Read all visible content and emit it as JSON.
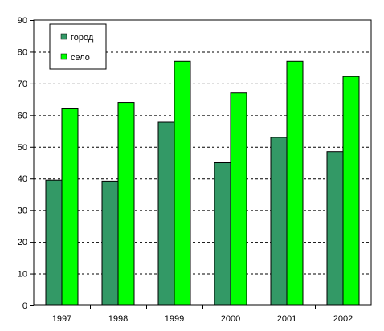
{
  "chart_data": {
    "type": "bar",
    "categories": [
      "1997",
      "1998",
      "1999",
      "2000",
      "2001",
      "2002"
    ],
    "series": [
      {
        "name": "город",
        "values": [
          39.5,
          39.2,
          57.8,
          45.0,
          53.0,
          48.5
        ],
        "color": "#339966"
      },
      {
        "name": "село",
        "values": [
          62.0,
          64.0,
          77.0,
          67.0,
          77.0,
          72.2
        ],
        "color": "#00ff00"
      }
    ],
    "title": "",
    "xlabel": "",
    "ylabel": "",
    "ylim": [
      0,
      90
    ],
    "yticks": [
      0,
      10,
      20,
      30,
      40,
      50,
      60,
      70,
      80,
      90
    ],
    "grid": true,
    "legend_position": "top-left"
  },
  "colors": {
    "background": "#ffffff",
    "axis": "#000000",
    "grid": "#000000"
  }
}
